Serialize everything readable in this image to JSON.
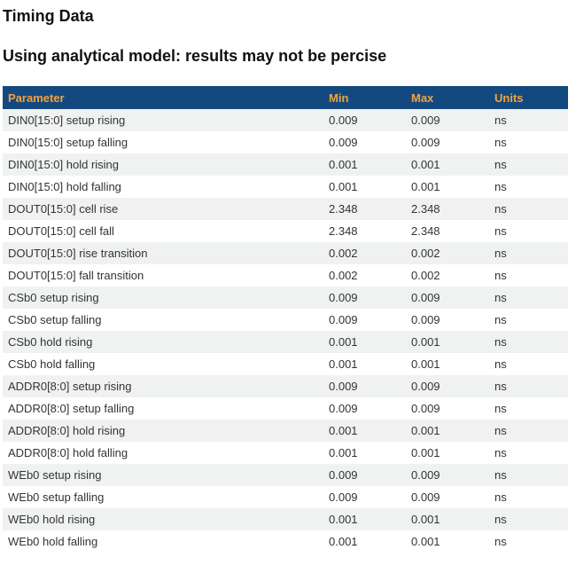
{
  "page": {
    "title": "Timing Data",
    "subtitle": "Using analytical model: results may not be percise"
  },
  "table": {
    "columns": [
      "Parameter",
      "Min",
      "Max",
      "Units"
    ],
    "rows": [
      {
        "parameter": "DIN0[15:0] setup rising",
        "min": "0.009",
        "max": "0.009",
        "units": "ns"
      },
      {
        "parameter": "DIN0[15:0] setup falling",
        "min": "0.009",
        "max": "0.009",
        "units": "ns"
      },
      {
        "parameter": "DIN0[15:0] hold rising",
        "min": "0.001",
        "max": "0.001",
        "units": "ns"
      },
      {
        "parameter": "DIN0[15:0] hold falling",
        "min": "0.001",
        "max": "0.001",
        "units": "ns"
      },
      {
        "parameter": "DOUT0[15:0] cell rise",
        "min": "2.348",
        "max": "2.348",
        "units": "ns"
      },
      {
        "parameter": "DOUT0[15:0] cell fall",
        "min": "2.348",
        "max": "2.348",
        "units": "ns"
      },
      {
        "parameter": "DOUT0[15:0] rise transition",
        "min": "0.002",
        "max": "0.002",
        "units": "ns"
      },
      {
        "parameter": "DOUT0[15:0] fall transition",
        "min": "0.002",
        "max": "0.002",
        "units": "ns"
      },
      {
        "parameter": "CSb0 setup rising",
        "min": "0.009",
        "max": "0.009",
        "units": "ns"
      },
      {
        "parameter": "CSb0 setup falling",
        "min": "0.009",
        "max": "0.009",
        "units": "ns"
      },
      {
        "parameter": "CSb0 hold rising",
        "min": "0.001",
        "max": "0.001",
        "units": "ns"
      },
      {
        "parameter": "CSb0 hold falling",
        "min": "0.001",
        "max": "0.001",
        "units": "ns"
      },
      {
        "parameter": "ADDR0[8:0] setup rising",
        "min": "0.009",
        "max": "0.009",
        "units": "ns"
      },
      {
        "parameter": "ADDR0[8:0] setup falling",
        "min": "0.009",
        "max": "0.009",
        "units": "ns"
      },
      {
        "parameter": "ADDR0[8:0] hold rising",
        "min": "0.001",
        "max": "0.001",
        "units": "ns"
      },
      {
        "parameter": "ADDR0[8:0] hold falling",
        "min": "0.001",
        "max": "0.001",
        "units": "ns"
      },
      {
        "parameter": "WEb0 setup rising",
        "min": "0.009",
        "max": "0.009",
        "units": "ns"
      },
      {
        "parameter": "WEb0 setup falling",
        "min": "0.009",
        "max": "0.009",
        "units": "ns"
      },
      {
        "parameter": "WEb0 hold rising",
        "min": "0.001",
        "max": "0.001",
        "units": "ns"
      },
      {
        "parameter": "WEb0 hold falling",
        "min": "0.001",
        "max": "0.001",
        "units": "ns"
      }
    ]
  },
  "colors": {
    "header_bg": "#14497f",
    "header_text": "#f0a43e",
    "row_alt_bg": "#f0f2f2",
    "body_text": "#333333",
    "heading_text": "#111111"
  }
}
